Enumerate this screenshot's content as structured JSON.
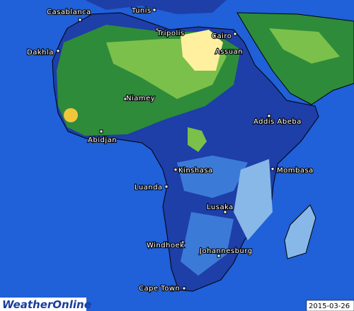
{
  "map": {
    "cities": [
      "Casablanca",
      "Tunis",
      "Tripolis",
      "Cairo",
      "Assuan",
      "Dakhla",
      "Niamey",
      "Abidjan",
      "Addis Abeba",
      "Kinshasa",
      "Mombasa",
      "Luanda",
      "Lusaka",
      "Windhoek",
      "Johannesburg",
      "Cape Town"
    ],
    "date": "2015-03-26",
    "logo": "WeatherOnline"
  }
}
